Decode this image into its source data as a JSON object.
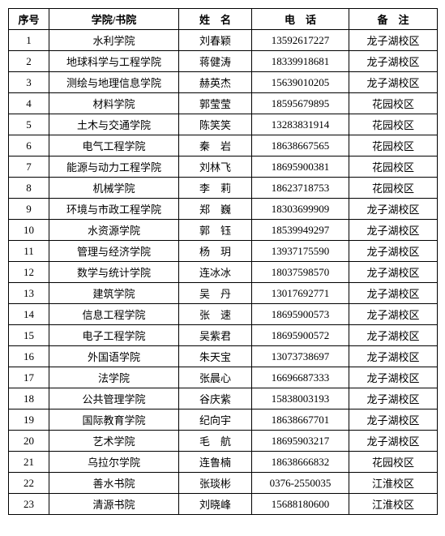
{
  "headers": {
    "seq": "序号",
    "dept": "学院/书院",
    "name": "姓　名",
    "phone": "电　话",
    "note": "备　注"
  },
  "rows": [
    {
      "seq": "1",
      "dept": "水利学院",
      "name": "刘春颖",
      "phone": "13592617227",
      "note": "龙子湖校区"
    },
    {
      "seq": "2",
      "dept": "地球科学与工程学院",
      "name": "蒋健涛",
      "phone": "18339918681",
      "note": "龙子湖校区"
    },
    {
      "seq": "3",
      "dept": "测绘与地理信息学院",
      "name": "赫英杰",
      "phone": "15639010205",
      "note": "龙子湖校区"
    },
    {
      "seq": "4",
      "dept": "材料学院",
      "name": "郭莹莹",
      "phone": "18595679895",
      "note": "花园校区"
    },
    {
      "seq": "5",
      "dept": "土木与交通学院",
      "name": "陈笑笑",
      "phone": "13283831914",
      "note": "花园校区"
    },
    {
      "seq": "6",
      "dept": "电气工程学院",
      "name": "秦　岩",
      "phone": "18638667565",
      "note": "花园校区"
    },
    {
      "seq": "7",
      "dept": "能源与动力工程学院",
      "name": "刘林飞",
      "phone": "18695900381",
      "note": "花园校区"
    },
    {
      "seq": "8",
      "dept": "机械学院",
      "name": "李　莉",
      "phone": "18623718753",
      "note": "花园校区"
    },
    {
      "seq": "9",
      "dept": "环境与市政工程学院",
      "name": "郑　巍",
      "phone": "18303699909",
      "note": "龙子湖校区"
    },
    {
      "seq": "10",
      "dept": "水资源学院",
      "name": "郭　钰",
      "phone": "18539949297",
      "note": "龙子湖校区"
    },
    {
      "seq": "11",
      "dept": "管理与经济学院",
      "name": "杨　玥",
      "phone": "13937175590",
      "note": "龙子湖校区"
    },
    {
      "seq": "12",
      "dept": "数学与统计学院",
      "name": "连冰冰",
      "phone": "18037598570",
      "note": "龙子湖校区"
    },
    {
      "seq": "13",
      "dept": "建筑学院",
      "name": "吴　丹",
      "phone": "13017692771",
      "note": "龙子湖校区"
    },
    {
      "seq": "14",
      "dept": "信息工程学院",
      "name": "张　速",
      "phone": "18695900573",
      "note": "龙子湖校区"
    },
    {
      "seq": "15",
      "dept": "电子工程学院",
      "name": "吴紫君",
      "phone": "18695900572",
      "note": "龙子湖校区"
    },
    {
      "seq": "16",
      "dept": "外国语学院",
      "name": "朱天宝",
      "phone": "13073738697",
      "note": "龙子湖校区"
    },
    {
      "seq": "17",
      "dept": "法学院",
      "name": "张晨心",
      "phone": "16696687333",
      "note": "龙子湖校区"
    },
    {
      "seq": "18",
      "dept": "公共管理学院",
      "name": "谷庆紫",
      "phone": "15838003193",
      "note": "龙子湖校区"
    },
    {
      "seq": "19",
      "dept": "国际教育学院",
      "name": "纪向宇",
      "phone": "18638667701",
      "note": "龙子湖校区"
    },
    {
      "seq": "20",
      "dept": "艺术学院",
      "name": "毛　航",
      "phone": "18695903217",
      "note": "龙子湖校区"
    },
    {
      "seq": "21",
      "dept": "乌拉尔学院",
      "name": "连鲁楠",
      "phone": "18638666832",
      "note": "花园校区"
    },
    {
      "seq": "22",
      "dept": "善水书院",
      "name": "张琰彬",
      "phone": "0376-2550035",
      "note": "江淮校区"
    },
    {
      "seq": "23",
      "dept": "清源书院",
      "name": "刘晓峰",
      "phone": "15688180600",
      "note": "江淮校区"
    }
  ]
}
